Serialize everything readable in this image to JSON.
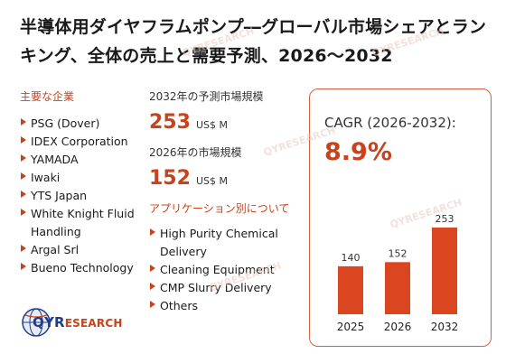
{
  "title": "半導体用ダイヤフラムポンプ―グローバル市場シェアとランキング、全体の売上と需要予測、2026～2032",
  "companies_label": "主要な企業",
  "companies": [
    "PSG (Dover)",
    "IDEX Corporation",
    "YAMADA",
    "Iwaki",
    "YTS Japan",
    "White Knight Fluid Handling",
    "Argal Srl",
    "Bueno Technology"
  ],
  "stats": {
    "forecast_label": "2032年の予測市場規模",
    "forecast_value": "253",
    "forecast_unit": "US$ M",
    "current_label": "2026年の市場規模",
    "current_value": "152",
    "current_unit": "US$ M"
  },
  "applications_label": "アプリケーション別について",
  "applications": [
    "High Purity Chemical Delivery",
    "Cleaning Equipment",
    "CMP Slurry Delivery",
    "Others"
  ],
  "cagr": {
    "label": "CAGR (2026-2032):",
    "value": "8.9%"
  },
  "logo": {
    "main": "QYR",
    "suffix": "ESEARCH"
  },
  "watermark_text": "QYRESEARCH",
  "colors": {
    "accent": "#c8421c",
    "bar": "#d9461f",
    "logo_blue": "#1f3d8a"
  },
  "chart_data": {
    "type": "bar",
    "categories": [
      "2025",
      "2026",
      "2032"
    ],
    "values": [
      140,
      152,
      253
    ],
    "title": "",
    "xlabel": "",
    "ylabel": "",
    "ylim": [
      0,
      253
    ]
  }
}
